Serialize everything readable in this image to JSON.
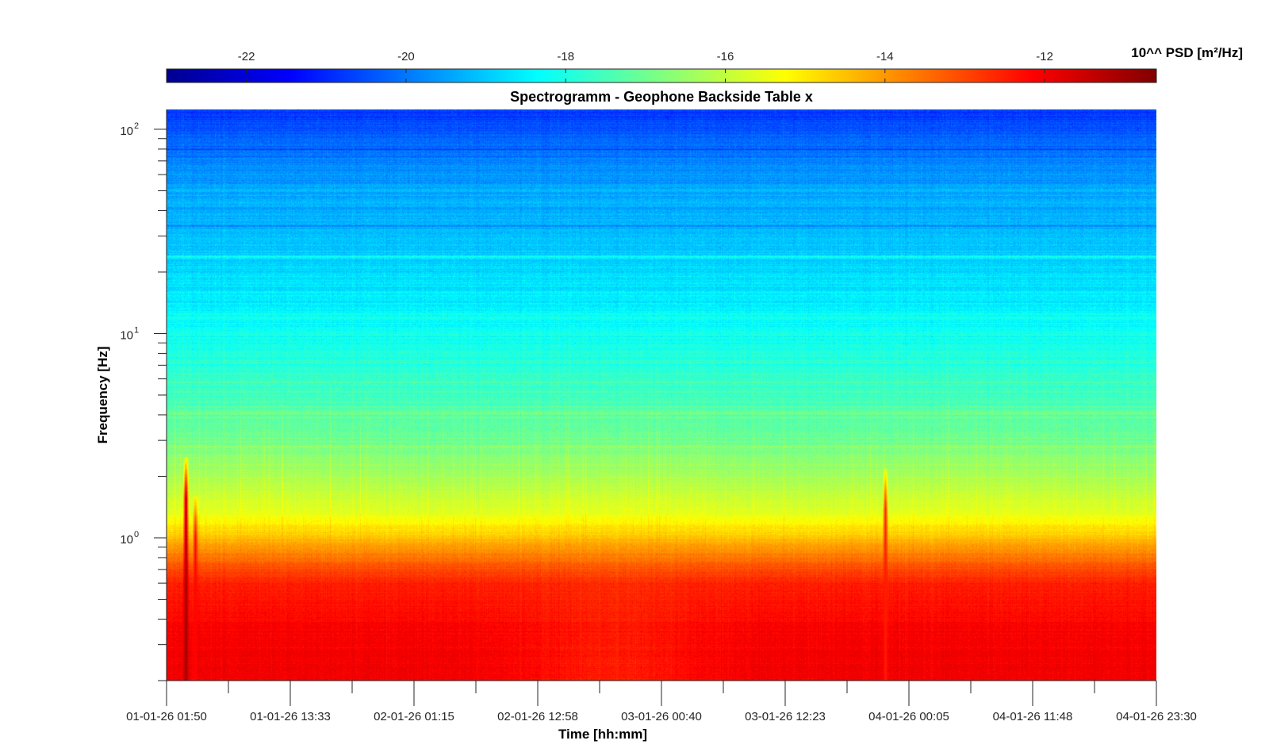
{
  "chart_data": {
    "type": "heatmap",
    "title": "Spectrogramm - Geophone Backside Table x",
    "xlabel": "Time [hh:mm]",
    "ylabel": "Frequency [Hz]",
    "x_scale": "time",
    "y_scale": "log",
    "ylim": [
      0.2,
      125
    ],
    "x_tick_labels": [
      "01-01-26 01:50",
      "01-01-26 13:33",
      "02-01-26 01:15",
      "02-01-26 12:58",
      "03-01-26 00:40",
      "03-01-26 12:23",
      "04-01-26 00:05",
      "04-01-26 11:48",
      "04-01-26 23:30"
    ],
    "y_tick_labels": [
      {
        "base": "10",
        "exp": "0",
        "value": 1
      },
      {
        "base": "10",
        "exp": "1",
        "value": 10
      },
      {
        "base": "10",
        "exp": "2",
        "value": 100
      }
    ],
    "colorbar": {
      "label": "10^^ PSD [m²/Hz]",
      "range": [
        -23,
        -10.6
      ],
      "colormap": "jet",
      "tick_labels": [
        "-22",
        "-20",
        "-18",
        "-16",
        "-14",
        "-12"
      ],
      "tick_values": [
        -22,
        -20,
        -18,
        -16,
        -14,
        -12
      ]
    },
    "psd_profile": [
      {
        "freq": 0.2,
        "log10_psd": -12.0
      },
      {
        "freq": 0.35,
        "log10_psd": -12.1
      },
      {
        "freq": 0.6,
        "log10_psd": -12.5
      },
      {
        "freq": 0.8,
        "log10_psd": -13.5
      },
      {
        "freq": 1.0,
        "log10_psd": -14.5
      },
      {
        "freq": 1.3,
        "log10_psd": -15.5
      },
      {
        "freq": 2.0,
        "log10_psd": -16.3
      },
      {
        "freq": 3.5,
        "log10_psd": -17.2
      },
      {
        "freq": 10,
        "log10_psd": -18.2
      },
      {
        "freq": 25,
        "log10_psd": -19.0
      },
      {
        "freq": 60,
        "log10_psd": -19.6
      },
      {
        "freq": 125,
        "log10_psd": -20.8
      }
    ],
    "events": [
      {
        "time_fraction": 0.019,
        "peak_log10_psd": -11.0,
        "max_freq": 2.5
      },
      {
        "time_fraction": 0.029,
        "peak_log10_psd": -12.2,
        "max_freq": 1.6
      },
      {
        "time_fraction": 0.726,
        "peak_log10_psd": -12.5,
        "max_freq": 2.2
      }
    ],
    "grid": false
  }
}
